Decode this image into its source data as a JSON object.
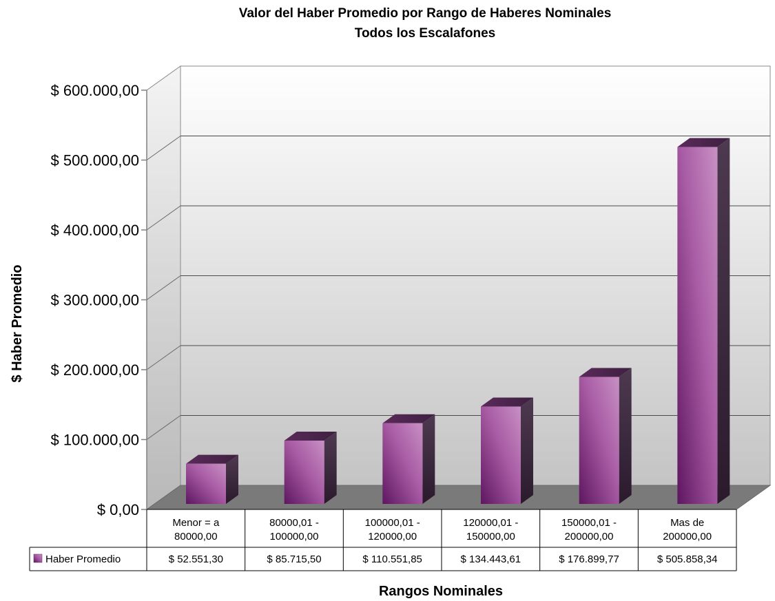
{
  "chart_data": {
    "type": "bar",
    "title": "Valor del Haber Promedio por Rango de Haberes Nominales",
    "subtitle": "Todos los Escalafones",
    "xlabel": "Rangos Nominales",
    "ylabel": "$ Haber Promedio",
    "ylim": [
      0,
      600000
    ],
    "y_ticks": [
      0,
      100000,
      200000,
      300000,
      400000,
      500000,
      600000
    ],
    "y_tick_labels": [
      "$ 0,00",
      "$ 100.000,00",
      "$ 200.000,00",
      "$ 300.000,00",
      "$ 400.000,00",
      "$ 500.000,00",
      "$ 600.000,00"
    ],
    "categories": [
      [
        "Menor = a",
        "80000,00"
      ],
      [
        "80000,01 -",
        "100000,00"
      ],
      [
        "100000,01 -",
        "120000,00"
      ],
      [
        "120000,01 -",
        "150000,00"
      ],
      [
        "150000,01 -",
        "200000,00"
      ],
      [
        "Mas de",
        "200000,00"
      ]
    ],
    "series": [
      {
        "name": "Haber Promedio",
        "values": [
          52551.3,
          85715.5,
          110551.85,
          134443.61,
          176899.77,
          505858.34
        ],
        "value_labels": [
          "$ 52.551,30",
          "$ 85.715,50",
          "$ 110.551,85",
          "$ 134.443,61",
          "$ 176.899,77",
          "$ 505.858,34"
        ],
        "color": "#a0559a"
      }
    ],
    "grid": true,
    "legend": "data-table",
    "style": "3d-column"
  }
}
